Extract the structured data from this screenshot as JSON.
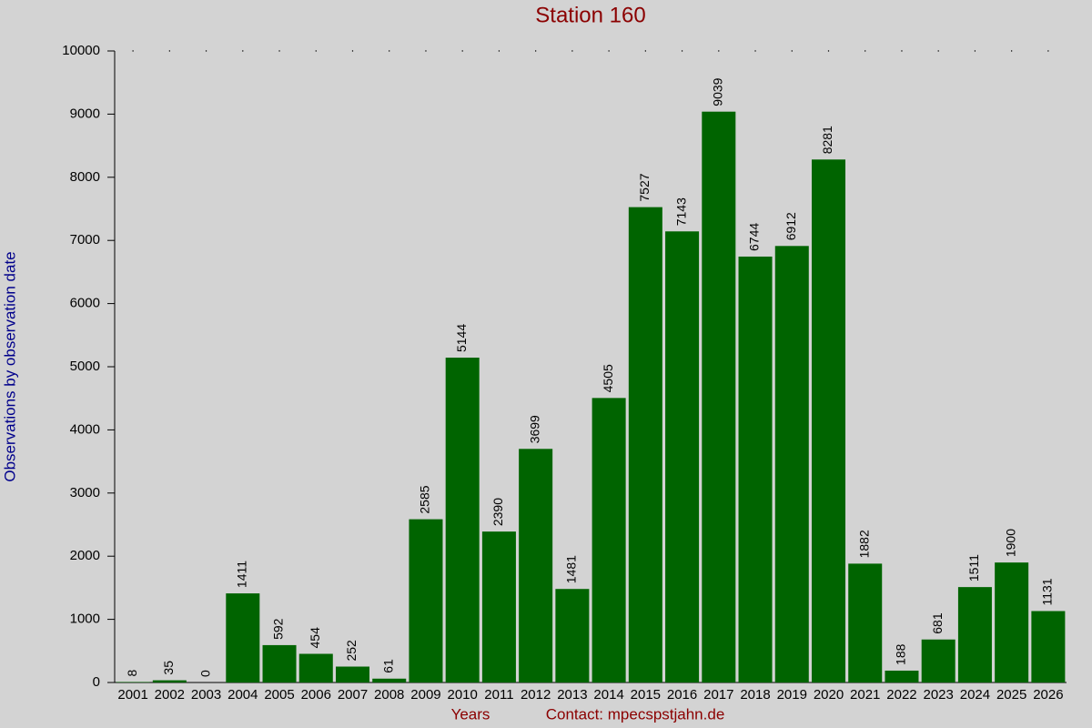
{
  "chart_data": {
    "type": "bar",
    "title": "Station 160",
    "y_label": "Observations by observation date",
    "x_label": "Years",
    "footer": "Contact: mpecspstjahn.de",
    "categories": [
      "2001",
      "2002",
      "2003",
      "2004",
      "2005",
      "2006",
      "2007",
      "2008",
      "2009",
      "2010",
      "2011",
      "2012",
      "2013",
      "2014",
      "2015",
      "2016",
      "2017",
      "2018",
      "2019",
      "2020",
      "2021",
      "2022",
      "2023",
      "2024",
      "2025",
      "2026"
    ],
    "values": [
      8,
      35,
      0,
      1411,
      592,
      454,
      252,
      61,
      2585,
      5144,
      2390,
      3699,
      1481,
      4505,
      7527,
      7143,
      9039,
      6744,
      6912,
      8281,
      1882,
      188,
      681,
      1511,
      1900,
      1131
    ],
    "color": "#006400",
    "ylim": [
      0,
      10000
    ],
    "yticks": [
      0,
      1000,
      2000,
      3000,
      4000,
      5000,
      6000,
      7000,
      8000,
      9000,
      10000
    ]
  }
}
